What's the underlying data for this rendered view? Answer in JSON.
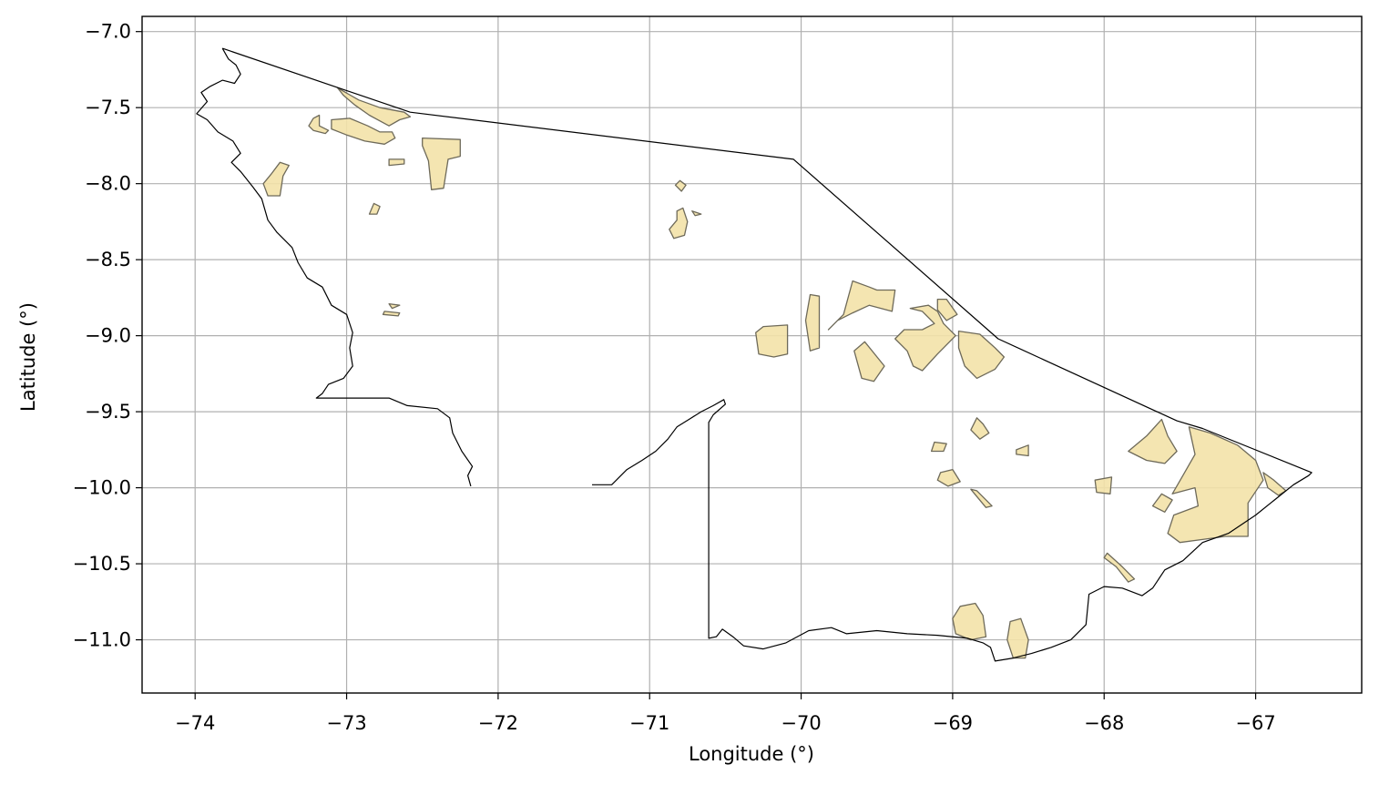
{
  "chart_data": {
    "type": "map",
    "xlabel": "Longitude (°)",
    "ylabel": "Latitude (°)",
    "xlim": [
      -74.35,
      -66.3
    ],
    "ylim": [
      -11.35,
      -6.9
    ],
    "xticks": [
      -74,
      -73,
      -72,
      -71,
      -70,
      -69,
      -68,
      -67
    ],
    "yticks": [
      -7.0,
      -7.5,
      -8.0,
      -8.5,
      -9.0,
      -9.5,
      -10.0,
      -10.5,
      -11.0
    ],
    "xtick_labels": [
      "−74",
      "−73",
      "−72",
      "−71",
      "−70",
      "−69",
      "−68",
      "−67"
    ],
    "ytick_labels": [
      "−7.0",
      "−7.5",
      "−8.0",
      "−8.5",
      "−9.0",
      "−9.5",
      "−10.0",
      "−10.5",
      "−11.0"
    ],
    "grid": true,
    "outline_color": "#000000",
    "area_fill_color": "#f3e2a9",
    "area_edge_color": "#6e6a5a"
  }
}
